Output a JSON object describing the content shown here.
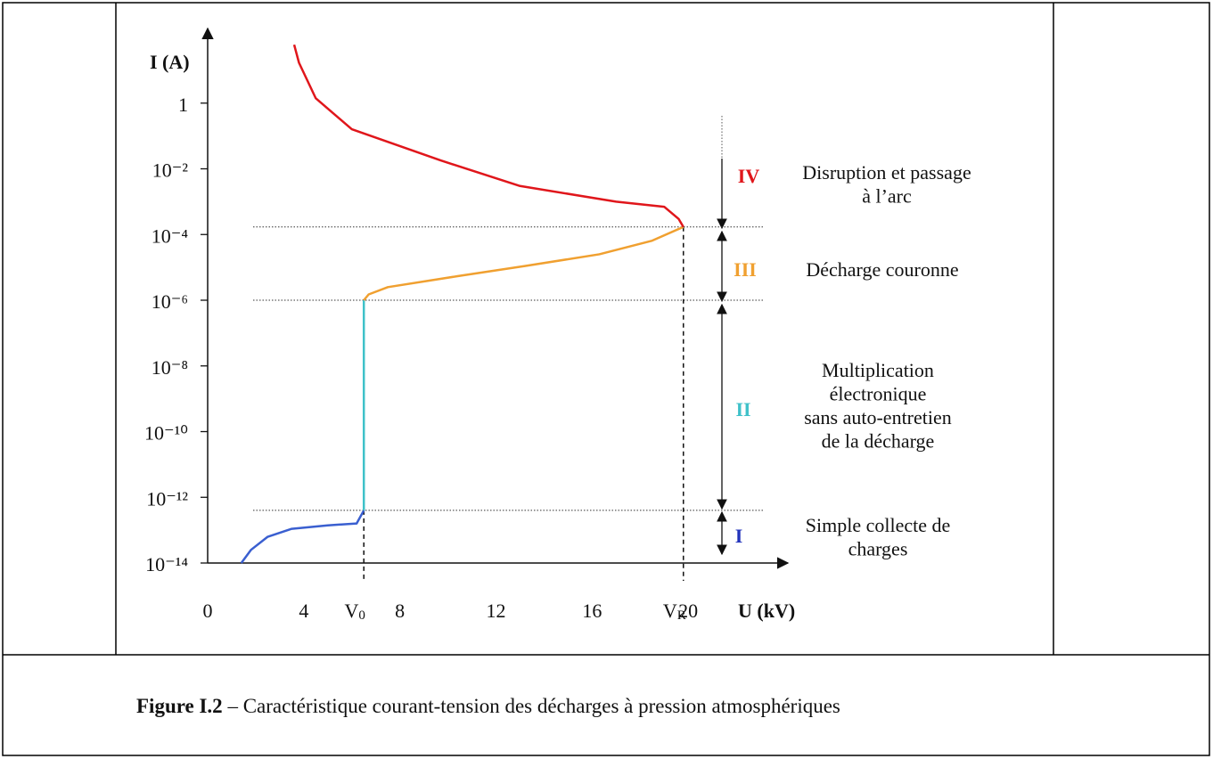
{
  "chart_data": {
    "type": "line",
    "caption": {
      "label": "Figure I.2",
      "text": " – Caractéristique courant-tension des décharges à pression atmosphériques"
    },
    "ylabel": "I (A)",
    "xlabel": "U (kV)",
    "log_y": true,
    "xlim": [
      0,
      24
    ],
    "ylim": [
      1e-14,
      100
    ],
    "xticks": [
      0,
      4,
      8,
      12,
      16,
      20
    ],
    "yticks": [
      {
        "value": 1e-14,
        "label": "10⁻¹⁴"
      },
      {
        "value": 1e-12,
        "label": "10⁻¹²"
      },
      {
        "value": 1e-10,
        "label": "10⁻¹⁰"
      },
      {
        "value": 1e-08,
        "label": "10⁻⁸"
      },
      {
        "value": 1e-06,
        "label": "10⁻⁶"
      },
      {
        "value": 0.0001,
        "label": "10⁻⁴"
      },
      {
        "value": 0.01,
        "label": "10⁻²"
      },
      1
    ],
    "series": [
      {
        "name": "I",
        "color": "#3a5fd0",
        "x": [
          1.4,
          1.8,
          2.5,
          3.5,
          5,
          6.2,
          6.5
        ],
        "values": [
          1e-14,
          2.5e-14,
          6.3e-14,
          1.1e-13,
          1.4e-13,
          1.6e-13,
          4e-13
        ]
      },
      {
        "name": "II",
        "color": "#3fc1c9",
        "x": [
          6.5,
          6.5
        ],
        "values": [
          4e-13,
          1e-06
        ]
      },
      {
        "name": "III",
        "color": "#f0a030",
        "x": [
          6.5,
          6.7,
          7.5,
          10.4,
          13.2,
          16.3,
          18.5,
          19.8
        ],
        "values": [
          1e-06,
          1.5e-06,
          2.5e-06,
          5.4e-06,
          1.1e-05,
          2.5e-05,
          6.5e-05,
          0.00017
        ]
      },
      {
        "name": "IV",
        "color": "#e0161b",
        "x": [
          19.8,
          19.6,
          19,
          17,
          13,
          9.7,
          6,
          4.5,
          3.8,
          3.6
        ],
        "values": [
          0.00017,
          0.0003,
          0.0007,
          0.001,
          0.003,
          0.018,
          0.16,
          1.4,
          17,
          60
        ]
      }
    ],
    "hlines": [
      0.00017,
      1e-06,
      4e-13
    ],
    "vlines": [
      {
        "x": 6.5,
        "y": 4e-13,
        "name": "V",
        "sub": "0"
      },
      {
        "x": 19.8,
        "y": 0.00017,
        "name": "V",
        "sub": "R"
      }
    ],
    "regions": [
      {
        "numeral": "IV",
        "color": "#e0161b",
        "lines": [
          "Disruption et passage",
          "à l’arc"
        ]
      },
      {
        "numeral": "III",
        "color": "#f0a030",
        "lines": [
          "Décharge couronne"
        ]
      },
      {
        "numeral": "II",
        "color": "#3fc1c9",
        "lines": [
          "Multiplication",
          "électronique",
          "sans auto-entretien",
          "de la décharge"
        ]
      },
      {
        "numeral": "I",
        "color": "#2233bb",
        "lines": [
          "Simple collecte de",
          "charges"
        ]
      }
    ]
  }
}
